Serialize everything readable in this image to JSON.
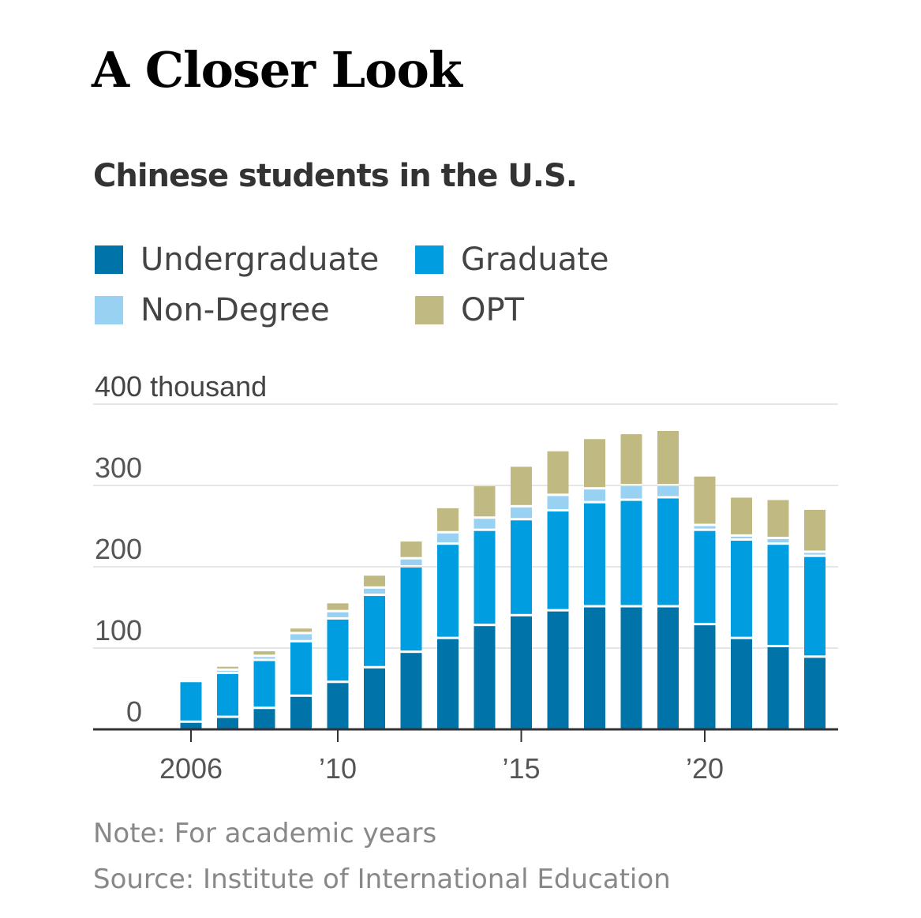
{
  "headline": "A Closer Look",
  "footnotes": {
    "note": "Note: For academic years",
    "source": "Source: Institute of International Education"
  },
  "chart_data": {
    "type": "bar",
    "stacked": true,
    "title": "Chinese students in the U.S.",
    "ylabel": "400 thousand",
    "ylim": [
      0,
      400
    ],
    "yticks": [
      0,
      100,
      200,
      300,
      400
    ],
    "ytick_labels": [
      "0",
      "100",
      "200",
      "300",
      "400 thousand"
    ],
    "x": [
      2006,
      2007,
      2008,
      2009,
      2010,
      2011,
      2012,
      2013,
      2014,
      2015,
      2016,
      2017,
      2018,
      2019,
      2020,
      2021,
      2022,
      2023
    ],
    "xticks": [
      2006,
      2010,
      2015,
      2020
    ],
    "xtick_labels": [
      "2006",
      "’10",
      "’15",
      "’20"
    ],
    "grid": true,
    "legend_position": "top",
    "series": [
      {
        "name": "Undergraduate",
        "color": "#0073a8",
        "values": [
          8,
          14,
          25,
          40,
          57,
          75,
          94,
          111,
          127,
          139,
          145,
          150,
          150,
          150,
          128,
          111,
          101,
          88
        ]
      },
      {
        "name": "Graduate",
        "color": "#009ee0",
        "values": [
          50,
          54,
          59,
          67,
          78,
          89,
          105,
          116,
          117,
          118,
          123,
          128,
          131,
          134,
          116,
          121,
          126,
          124
        ]
      },
      {
        "name": "Non-Degree",
        "color": "#99d1f2",
        "values": [
          3,
          4,
          5,
          10,
          9,
          9,
          10,
          14,
          15,
          16,
          19,
          17,
          18,
          15,
          6,
          5,
          7,
          5
        ]
      },
      {
        "name": "OPT",
        "color": "#c0ba82",
        "values": [
          3,
          5,
          7,
          7,
          11,
          16,
          22,
          31,
          40,
          50,
          55,
          62,
          64,
          68,
          61,
          48,
          48,
          53
        ]
      }
    ]
  }
}
